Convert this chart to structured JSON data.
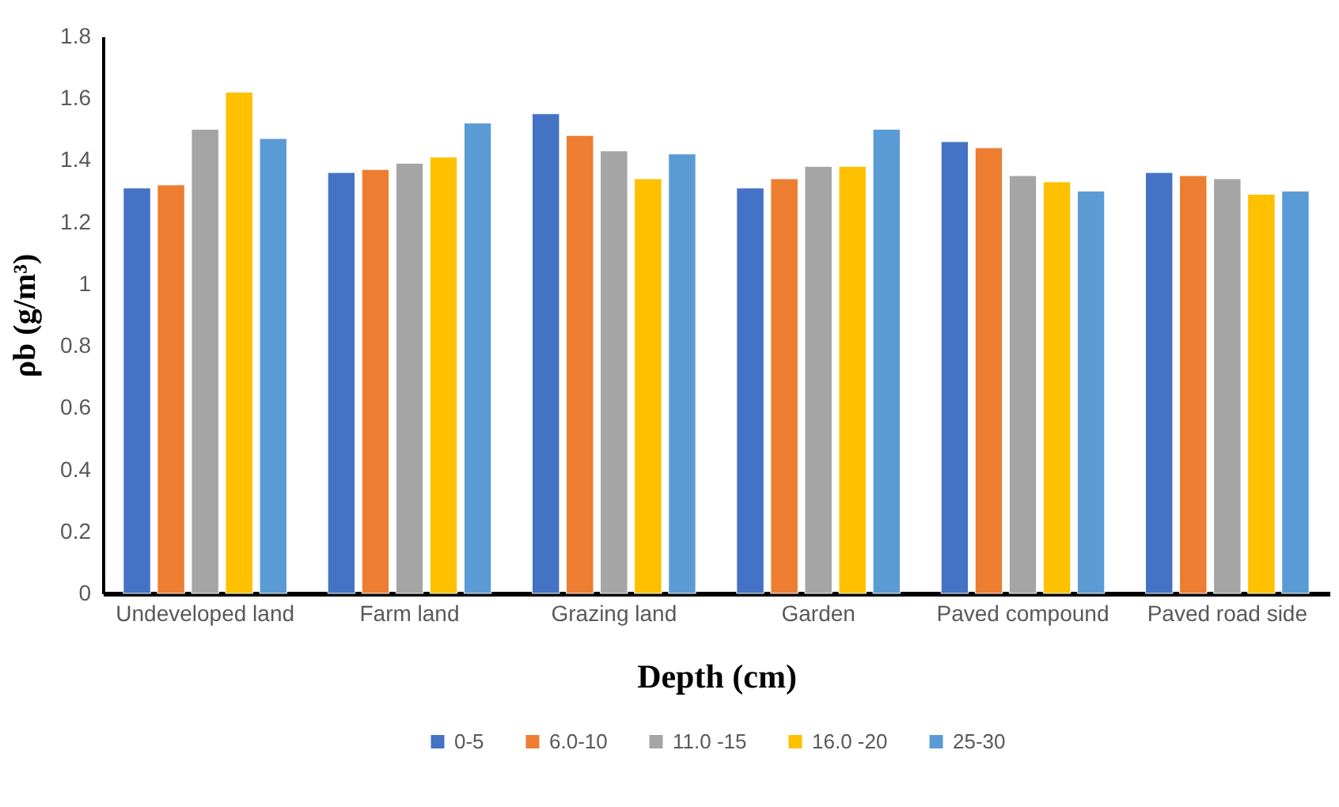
{
  "chart_data": {
    "type": "bar",
    "xlabel": "Depth (cm)",
    "ylabel": "ρb (g/m³)",
    "categories": [
      "Undeveloped land",
      "Farm land",
      "Grazing land",
      "Garden",
      "Paved compound",
      "Paved road side"
    ],
    "series": [
      {
        "name": "0-5",
        "color": "#4472c4",
        "values": [
          1.31,
          1.36,
          1.55,
          1.31,
          1.46,
          1.36
        ]
      },
      {
        "name": "6.0-10",
        "color": "#ed7d31",
        "values": [
          1.32,
          1.37,
          1.48,
          1.34,
          1.44,
          1.35
        ]
      },
      {
        "name": "11.0 -15",
        "color": "#a5a5a5",
        "values": [
          1.5,
          1.39,
          1.43,
          1.38,
          1.35,
          1.34
        ]
      },
      {
        "name": "16.0 -20",
        "color": "#ffc000",
        "values": [
          1.62,
          1.41,
          1.34,
          1.38,
          1.33,
          1.29
        ]
      },
      {
        "name": "25-30",
        "color": "#5b9bd5",
        "values": [
          1.47,
          1.52,
          1.42,
          1.5,
          1.3,
          1.3
        ]
      }
    ],
    "ylim": [
      0,
      1.8
    ],
    "yticks": [
      0,
      0.2,
      0.4,
      0.6,
      0.8,
      1,
      1.2,
      1.4,
      1.6,
      1.8
    ],
    "grid": false,
    "legend": "bottom"
  }
}
